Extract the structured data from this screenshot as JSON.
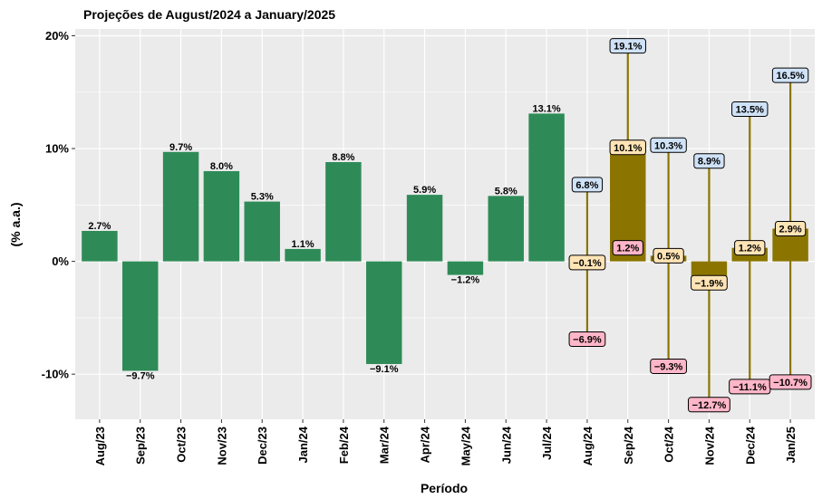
{
  "chart_data": {
    "type": "bar",
    "title": "Projeções de August/2024 a January/2025",
    "x_label": "Período",
    "y_label": "(% a.a.)",
    "categories": [
      "Aug/23",
      "Sep/23",
      "Oct/23",
      "Nov/23",
      "Dec/23",
      "Jan/24",
      "Feb/24",
      "Mar/24",
      "Apr/24",
      "May/24",
      "Jun/24",
      "Jul/24",
      "Aug/24",
      "Sep/24",
      "Oct/24",
      "Nov/24",
      "Dec/24",
      "Jan/25"
    ],
    "series": [
      {
        "role": "history",
        "color": "#2e8b57",
        "values": [
          2.7,
          -9.7,
          9.7,
          8.0,
          5.3,
          1.1,
          8.8,
          -9.1,
          5.9,
          -1.2,
          5.8,
          13.1,
          null,
          null,
          null,
          null,
          null,
          null
        ],
        "value_labels": [
          "2.7%",
          "−9.7%",
          "9.7%",
          "8.0%",
          "5.3%",
          "1.1%",
          "8.8%",
          "−9.1%",
          "5.9%",
          "−1.2%",
          "5.8%",
          "13.1%",
          null,
          null,
          null,
          null,
          null,
          null
        ]
      },
      {
        "role": "central",
        "color": "#8b7500",
        "label_color": "#ffe4b5",
        "values": [
          null,
          null,
          null,
          null,
          null,
          null,
          null,
          null,
          null,
          null,
          null,
          null,
          -0.1,
          10.1,
          0.5,
          -1.9,
          1.2,
          2.9
        ],
        "value_labels": [
          null,
          null,
          null,
          null,
          null,
          null,
          null,
          null,
          null,
          null,
          null,
          null,
          "−0.1%",
          "10.1%",
          "0.5%",
          "−1.9%",
          "1.2%",
          "2.9%"
        ]
      },
      {
        "role": "low",
        "color": "#8b7500",
        "label_color": "#ffb6c8",
        "values": [
          null,
          null,
          null,
          null,
          null,
          null,
          null,
          null,
          null,
          null,
          null,
          null,
          -6.9,
          1.2,
          -9.3,
          -12.7,
          -11.1,
          -10.7
        ],
        "value_labels": [
          null,
          null,
          null,
          null,
          null,
          null,
          null,
          null,
          null,
          null,
          null,
          null,
          "−6.9%",
          "1.2%",
          "−9.3%",
          "−12.7%",
          "−11.1%",
          "−10.7%"
        ]
      },
      {
        "role": "high",
        "color": "#8b7500",
        "label_color": "#cfe2f7",
        "values": [
          null,
          null,
          null,
          null,
          null,
          null,
          null,
          null,
          null,
          null,
          null,
          null,
          6.8,
          19.1,
          10.3,
          8.9,
          13.5,
          16.5
        ],
        "value_labels": [
          null,
          null,
          null,
          null,
          null,
          null,
          null,
          null,
          null,
          null,
          null,
          null,
          "6.8%",
          "19.1%",
          "10.3%",
          "8.9%",
          "13.5%",
          "16.5%"
        ]
      }
    ],
    "ylim": [
      -14.0,
      20.6
    ],
    "yticks": [
      {
        "value": -10,
        "label": "-10%"
      },
      {
        "value": 0,
        "label": "0%"
      },
      {
        "value": 10,
        "label": "10%"
      },
      {
        "value": 20,
        "label": "20%"
      }
    ],
    "grid": true
  }
}
